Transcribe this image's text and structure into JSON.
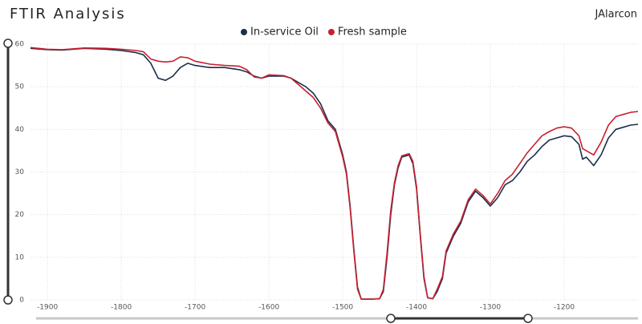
{
  "chart_data": {
    "type": "line",
    "title": "FTIR Analysis",
    "author": "JAlarcon",
    "x": [
      -1923,
      -1900,
      -1880,
      -1850,
      -1820,
      -1800,
      -1780,
      -1770,
      -1760,
      -1750,
      -1740,
      -1730,
      -1720,
      -1710,
      -1700,
      -1680,
      -1660,
      -1640,
      -1630,
      -1620,
      -1610,
      -1600,
      -1580,
      -1570,
      -1560,
      -1550,
      -1540,
      -1530,
      -1520,
      -1510,
      -1500,
      -1495,
      -1490,
      -1485,
      -1480,
      -1475,
      -1460,
      -1450,
      -1445,
      -1440,
      -1435,
      -1430,
      -1425,
      -1420,
      -1410,
      -1405,
      -1400,
      -1395,
      -1390,
      -1385,
      -1378,
      -1372,
      -1365,
      -1360,
      -1350,
      -1340,
      -1330,
      -1320,
      -1310,
      -1300,
      -1290,
      -1280,
      -1270,
      -1260,
      -1250,
      -1240,
      -1230,
      -1220,
      -1210,
      -1200,
      -1190,
      -1180,
      -1175,
      -1170,
      -1160,
      -1150,
      -1140,
      -1130,
      -1120,
      -1110,
      -1100
    ],
    "series": [
      {
        "name": "In-service Oil",
        "color": "#1b2f4b",
        "values": [
          59.0,
          58.7,
          58.6,
          59.0,
          58.8,
          58.5,
          58.0,
          57.5,
          55.5,
          52.0,
          51.5,
          52.5,
          54.5,
          55.5,
          55.0,
          54.5,
          54.5,
          54.0,
          53.5,
          52.5,
          52.0,
          52.5,
          52.5,
          52.0,
          51.0,
          50.0,
          48.5,
          46.0,
          42.0,
          40.0,
          34.0,
          30.0,
          22.0,
          12.0,
          3.0,
          0.2,
          0.2,
          0.3,
          2.0,
          10.0,
          20.0,
          27.0,
          31.0,
          33.5,
          34.0,
          32.0,
          26.0,
          15.0,
          5.0,
          0.5,
          0.3,
          2.0,
          5.0,
          11.0,
          15.0,
          18.0,
          23.0,
          25.5,
          24.0,
          22.0,
          24.0,
          27.0,
          28.0,
          30.0,
          32.5,
          34.0,
          36.0,
          37.5,
          38.0,
          38.5,
          38.3,
          36.5,
          33.0,
          33.5,
          31.5,
          34.0,
          38.0,
          40.0,
          40.5,
          41.0,
          41.2
        ]
      },
      {
        "name": "Fresh sample",
        "color": "#c8202f",
        "values": [
          59.2,
          58.8,
          58.7,
          59.1,
          59.0,
          58.8,
          58.5,
          58.2,
          56.5,
          56.0,
          55.8,
          56.0,
          57.0,
          56.8,
          56.0,
          55.3,
          55.0,
          54.8,
          54.0,
          52.3,
          52.0,
          52.8,
          52.6,
          52.0,
          50.5,
          49.0,
          47.5,
          45.0,
          41.5,
          39.5,
          33.5,
          29.5,
          21.5,
          11.5,
          2.5,
          0.2,
          0.2,
          0.3,
          2.5,
          11.0,
          21.0,
          27.5,
          31.5,
          33.8,
          34.3,
          32.5,
          26.5,
          15.5,
          5.5,
          0.5,
          0.3,
          2.5,
          5.5,
          11.5,
          15.5,
          18.5,
          23.5,
          26.0,
          24.5,
          22.5,
          25.0,
          28.0,
          29.5,
          32.0,
          34.5,
          36.5,
          38.5,
          39.5,
          40.3,
          40.6,
          40.3,
          38.5,
          35.5,
          35.0,
          34.0,
          37.0,
          41.0,
          43.0,
          43.5,
          44.0,
          44.2
        ]
      }
    ],
    "xlim": [
      -1923,
      -1100
    ],
    "ylim": [
      0,
      60
    ],
    "xticks": [
      -1900,
      -1800,
      -1700,
      -1600,
      -1500,
      -1400,
      -1300,
      -1200
    ],
    "yticks": [
      0,
      10,
      20,
      30,
      40,
      50,
      60
    ],
    "grid": true
  }
}
